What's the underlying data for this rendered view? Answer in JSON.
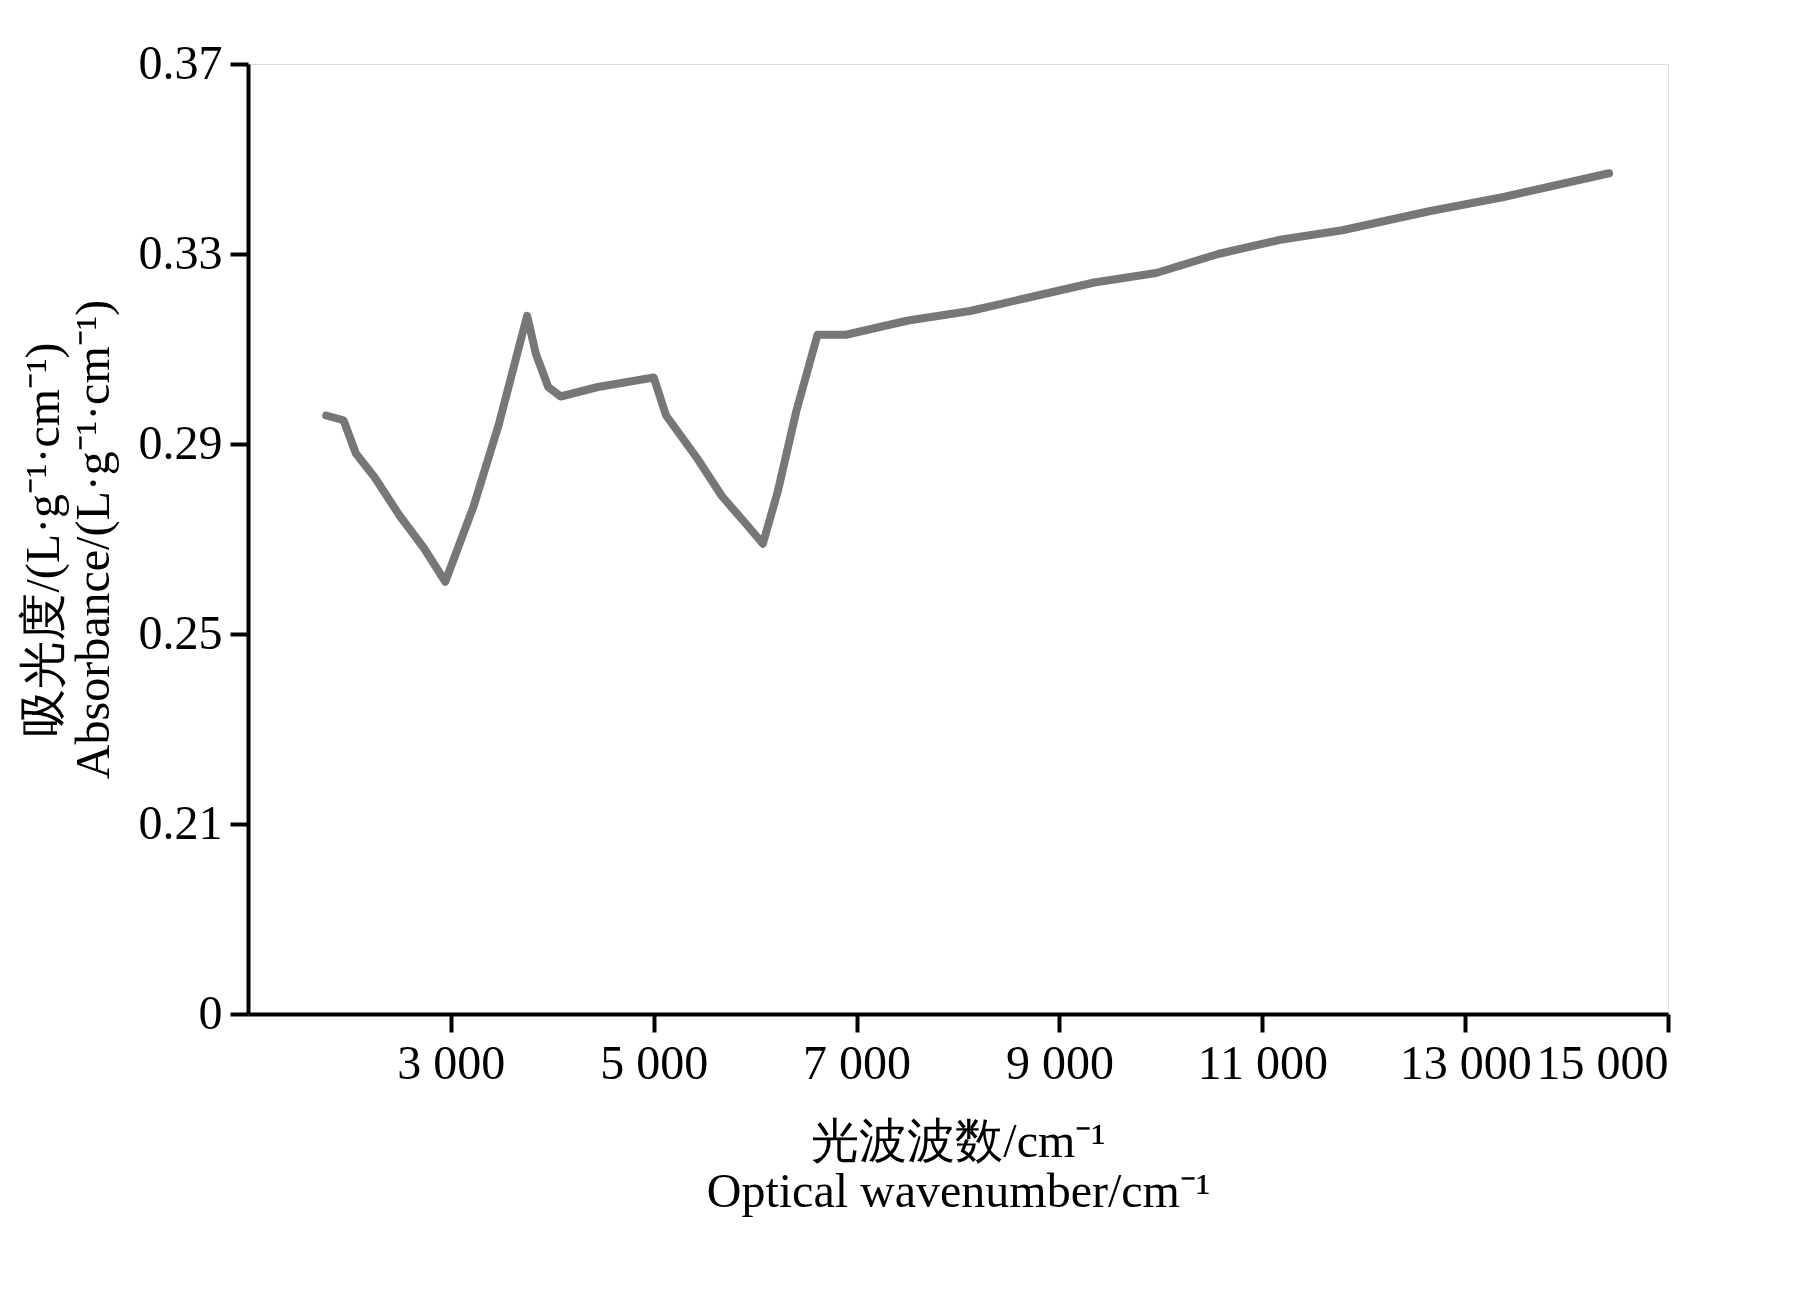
{
  "chart_data": {
    "type": "line",
    "xlabel": "光波波数/cm⁻¹\nOptical wavenumber/cm⁻¹",
    "ylabel": "吸光度/(L·g⁻¹·cm⁻¹)\nAbsorbance/(L·g⁻¹·cm⁻¹)",
    "x": [
      1771,
      1942,
      2064,
      2248,
      2492,
      2737,
      2945,
      3226,
      3471,
      3654,
      3752,
      3838,
      3960,
      4083,
      4450,
      5000,
      5122,
      5428,
      5673,
      5917,
      6076,
      6223,
      6407,
      6615,
      6896,
      7508,
      8119,
      8731,
      9343,
      9954,
      10566,
      11177,
      11789,
      12645,
      13379,
      14419
    ],
    "series": [
      {
        "color": "#777777",
        "values": [
          0.296,
          0.295,
          0.288,
          0.283,
          0.275,
          0.268,
          0.261,
          0.277,
          0.294,
          0.309,
          0.317,
          0.309,
          0.302,
          0.3,
          0.302,
          0.304,
          0.296,
          0.287,
          0.279,
          0.273,
          0.269,
          0.28,
          0.297,
          0.313,
          0.313,
          0.316,
          0.318,
          0.321,
          0.324,
          0.326,
          0.33,
          0.333,
          0.335,
          0.339,
          0.342,
          0.347
        ]
      }
    ],
    "xlim": [
      1000,
      15000
    ],
    "xticks": [
      {
        "value": 3000,
        "label": "3 000"
      },
      {
        "value": 5000,
        "label": "5 000"
      },
      {
        "value": 7000,
        "label": "7 000"
      },
      {
        "value": 9000,
        "label": "9 000"
      },
      {
        "value": 11000,
        "label": "11 000"
      },
      {
        "value": 13000,
        "label": "13 000"
      },
      {
        "value": 15000,
        "label": "15 000"
      }
    ],
    "ylim": [
      0.17,
      0.37
    ],
    "yticks": [
      {
        "value": 0.17,
        "label": "0"
      },
      0.21,
      0.25,
      0.29,
      0.33,
      0.37
    ],
    "grid": false,
    "line_style": "solid"
  }
}
